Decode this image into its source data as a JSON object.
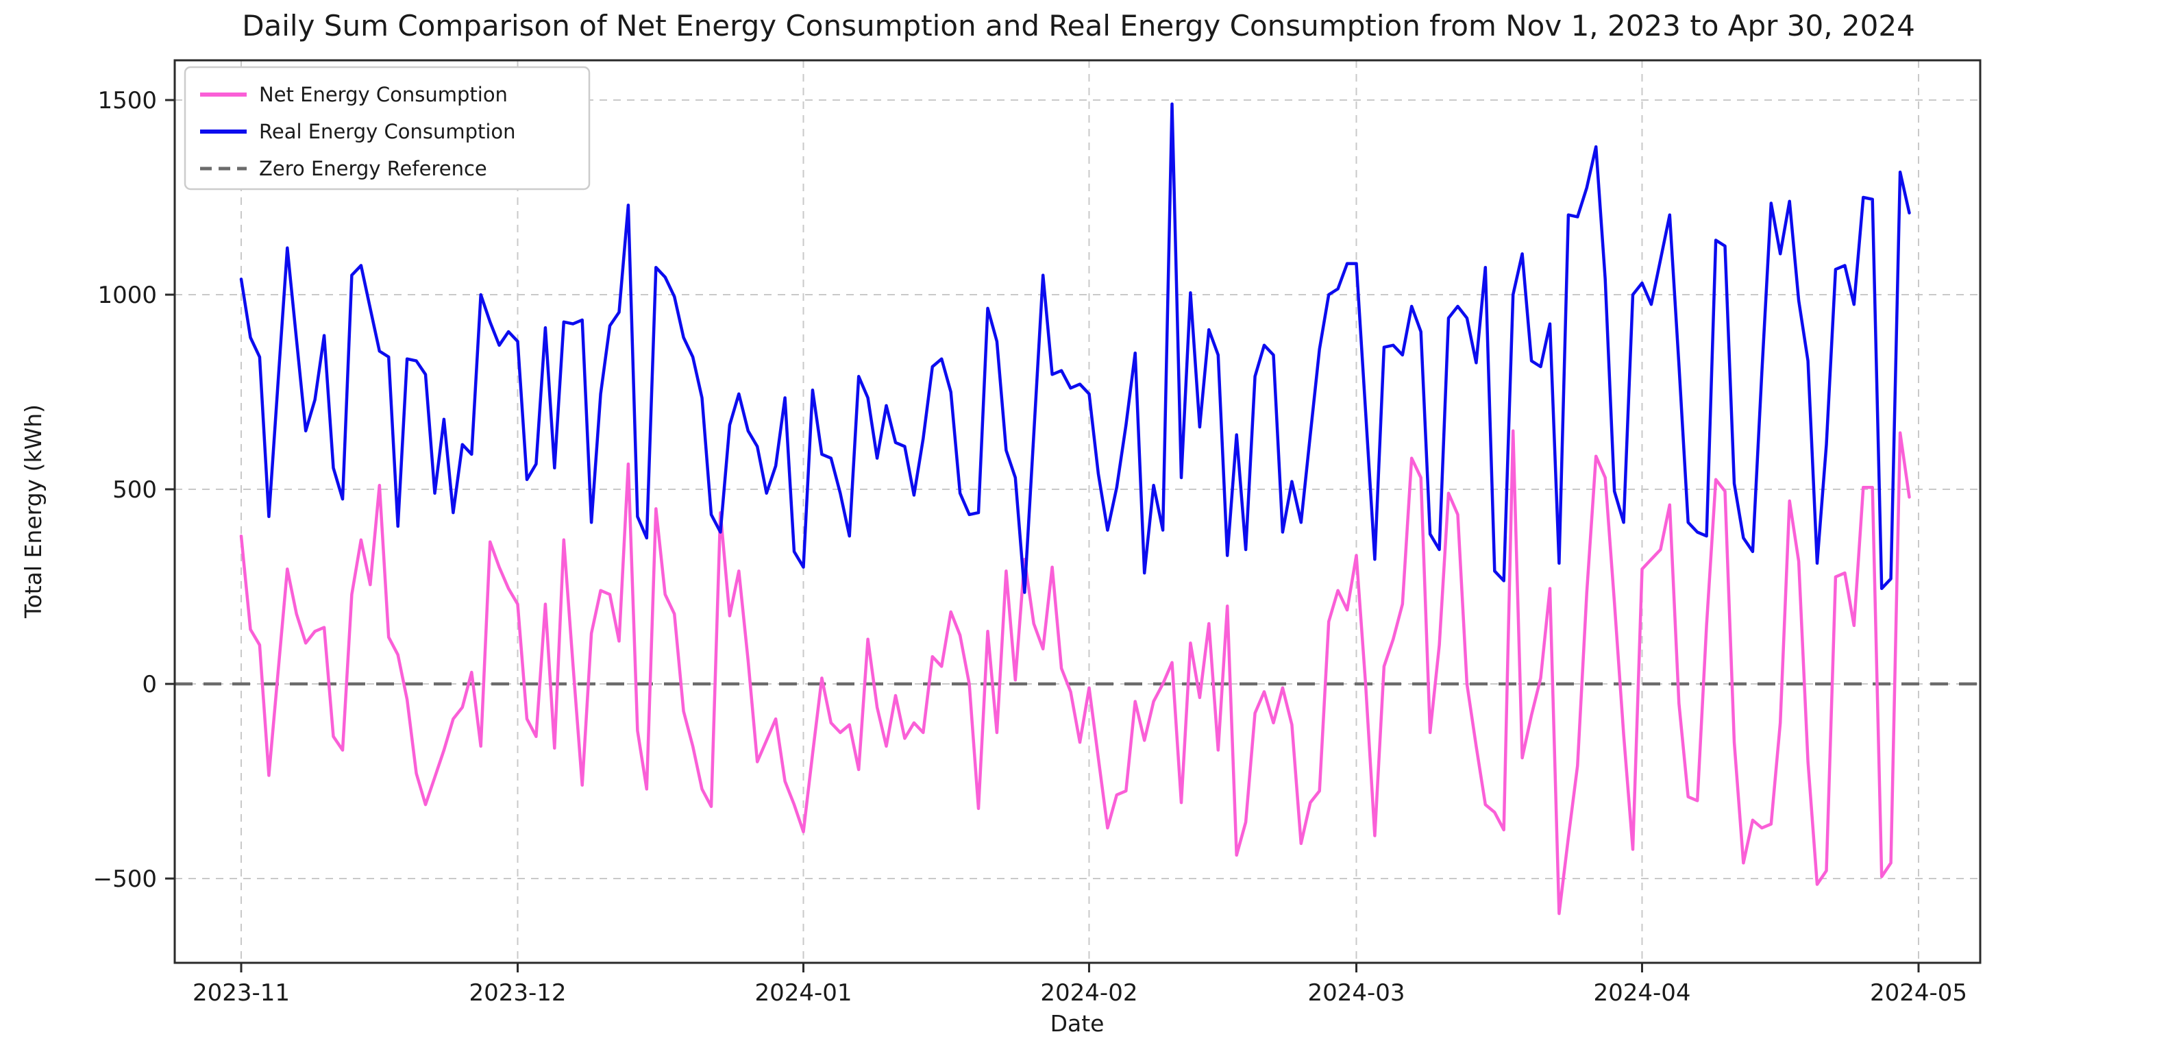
{
  "title": "Daily Sum Comparison of Net Energy Consumption and Real Energy Consumption from Nov 1, 2023 to Apr 30, 2024",
  "colors": {
    "net": "#FA5FD7",
    "real": "#0C0CEE",
    "zero_ref": "#6b6b6b",
    "grid": "#c9c9c9",
    "spine": "#2a2a2a",
    "text": "#1a1a1a",
    "legend_border": "#cccccc"
  },
  "chart_data": {
    "type": "line",
    "title": "Daily Sum Comparison of Net Energy Consumption and Real Energy Consumption from Nov 1, 2023 to Apr 30, 2024",
    "xlabel": "Date",
    "ylabel": "Total Energy (kWh)",
    "x_start": "2023-11-01",
    "x_end": "2024-04-30",
    "x_tick_labels": [
      "2023-11",
      "2023-12",
      "2024-01",
      "2024-02",
      "2024-03",
      "2024-04",
      "2024-05"
    ],
    "x_tick_day_index": [
      0,
      30,
      61,
      92,
      121,
      152,
      182
    ],
    "y_tick_values": [
      1500,
      1000,
      500,
      0,
      -500
    ],
    "y_tick_labels": [
      "1500",
      "1000",
      "500",
      "0",
      "−500"
    ],
    "ylim": [
      -660,
      1580
    ],
    "grid": true,
    "legend_position": "upper left",
    "zero_reference": 0,
    "series": [
      {
        "name": "Net Energy Consumption",
        "key": "net",
        "style": "solid",
        "values": [
          380,
          140,
          100,
          -235,
          30,
          295,
          180,
          105,
          135,
          145,
          -135,
          -170,
          230,
          370,
          255,
          510,
          120,
          75,
          -40,
          -230,
          -310,
          -240,
          -170,
          -90,
          -60,
          30,
          -160,
          365,
          300,
          245,
          205,
          -90,
          -135,
          205,
          -165,
          370,
          50,
          -260,
          130,
          240,
          230,
          110,
          565,
          -120,
          -270,
          450,
          230,
          180,
          -70,
          -160,
          -270,
          -315,
          440,
          175,
          290,
          60,
          -200,
          -145,
          -90,
          -250,
          -310,
          -380,
          -180,
          15,
          -100,
          -125,
          -105,
          -220,
          115,
          -60,
          -160,
          -30,
          -140,
          -100,
          -125,
          70,
          45,
          185,
          125,
          0,
          -320,
          135,
          -125,
          290,
          10,
          320,
          155,
          90,
          300,
          40,
          -20,
          -150,
          -10,
          -190,
          -370,
          -285,
          -275,
          -45,
          -145,
          -45,
          0,
          55,
          -305,
          105,
          -35,
          155,
          -170,
          200,
          -440,
          -355,
          -75,
          -20,
          -100,
          -10,
          -105,
          -410,
          -305,
          -275,
          160,
          240,
          190,
          330,
          0,
          -390,
          45,
          115,
          205,
          580,
          530,
          -125,
          100,
          490,
          435,
          0,
          -160,
          -310,
          -330,
          -375,
          650,
          -190,
          -80,
          15,
          245,
          -590,
          -395,
          -210,
          235,
          585,
          530,
          210,
          -130,
          -425,
          295,
          320,
          345,
          460,
          -50,
          -290,
          -300,
          150,
          525,
          495,
          -150,
          -460,
          -350,
          -370,
          -360,
          -100,
          470,
          315,
          -200,
          -515,
          -480,
          275,
          285,
          150,
          505,
          505,
          -495,
          -460,
          645,
          480
        ]
      },
      {
        "name": "Real Energy Consumption",
        "key": "real",
        "style": "solid",
        "values": [
          1040,
          890,
          840,
          430,
          775,
          1120,
          885,
          650,
          730,
          895,
          555,
          475,
          1050,
          1075,
          965,
          855,
          840,
          405,
          835,
          830,
          795,
          490,
          680,
          440,
          615,
          590,
          1000,
          930,
          870,
          905,
          880,
          525,
          565,
          915,
          555,
          930,
          925,
          935,
          415,
          745,
          920,
          955,
          1230,
          430,
          375,
          1070,
          1045,
          995,
          890,
          840,
          735,
          435,
          390,
          665,
          745,
          650,
          610,
          490,
          560,
          735,
          340,
          300,
          755,
          590,
          580,
          490,
          380,
          790,
          735,
          580,
          715,
          620,
          610,
          485,
          630,
          815,
          835,
          750,
          490,
          435,
          440,
          965,
          880,
          600,
          530,
          235,
          640,
          1050,
          795,
          805,
          760,
          770,
          745,
          540,
          395,
          505,
          665,
          850,
          285,
          510,
          395,
          1490,
          530,
          1005,
          660,
          910,
          845,
          330,
          640,
          345,
          790,
          870,
          845,
          390,
          520,
          415,
          640,
          860,
          1000,
          1015,
          1080,
          1080,
          700,
          320,
          865,
          870,
          845,
          970,
          905,
          385,
          345,
          940,
          970,
          940,
          825,
          1070,
          290,
          265,
          1000,
          1105,
          830,
          815,
          925,
          310,
          1205,
          1200,
          1275,
          1380,
          1040,
          495,
          415,
          1000,
          1030,
          975,
          1090,
          1205,
          820,
          415,
          390,
          380,
          1140,
          1125,
          515,
          375,
          340,
          800,
          1235,
          1105,
          1240,
          985,
          830,
          310,
          615,
          1065,
          1075,
          975,
          1250,
          1245,
          245,
          270,
          1315,
          1210
        ]
      },
      {
        "name": "Zero Energy Reference",
        "key": "zero_ref",
        "style": "dashed",
        "value": 0
      }
    ]
  },
  "legend": {
    "items": [
      {
        "label": "Net Energy Consumption"
      },
      {
        "label": "Real Energy Consumption"
      },
      {
        "label": "Zero Energy Reference"
      }
    ]
  }
}
